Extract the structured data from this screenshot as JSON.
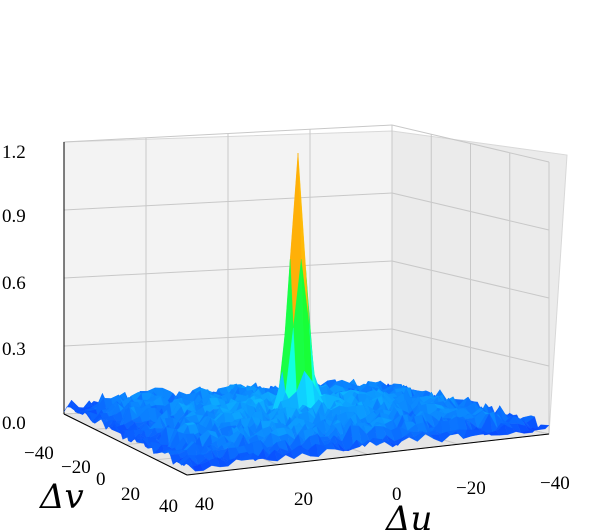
{
  "chart_data": {
    "type": "surface3d",
    "title": "",
    "xlabel": "Δu",
    "ylabel": "Δv",
    "zlabel": "",
    "x_range": [
      40,
      -40
    ],
    "y_range": [
      -40,
      40
    ],
    "zlim": [
      0,
      1.2
    ],
    "x_ticks": [
      "40",
      "20",
      "0",
      "−20",
      "−40"
    ],
    "y_ticks": [
      "−40",
      "−20",
      "0",
      "20",
      "40"
    ],
    "z_ticks": [
      "0.0",
      "0.3",
      "0.6",
      "0.9",
      "1.2"
    ],
    "peak": {
      "x": 0,
      "y": 0,
      "z": 1.15
    },
    "background_level": 0.06,
    "colormap": "rainbow",
    "grid": true,
    "pane_colors": {
      "left": "#f2f2f2",
      "right": "#ebebeb",
      "floor": "#e6e6e6"
    }
  }
}
